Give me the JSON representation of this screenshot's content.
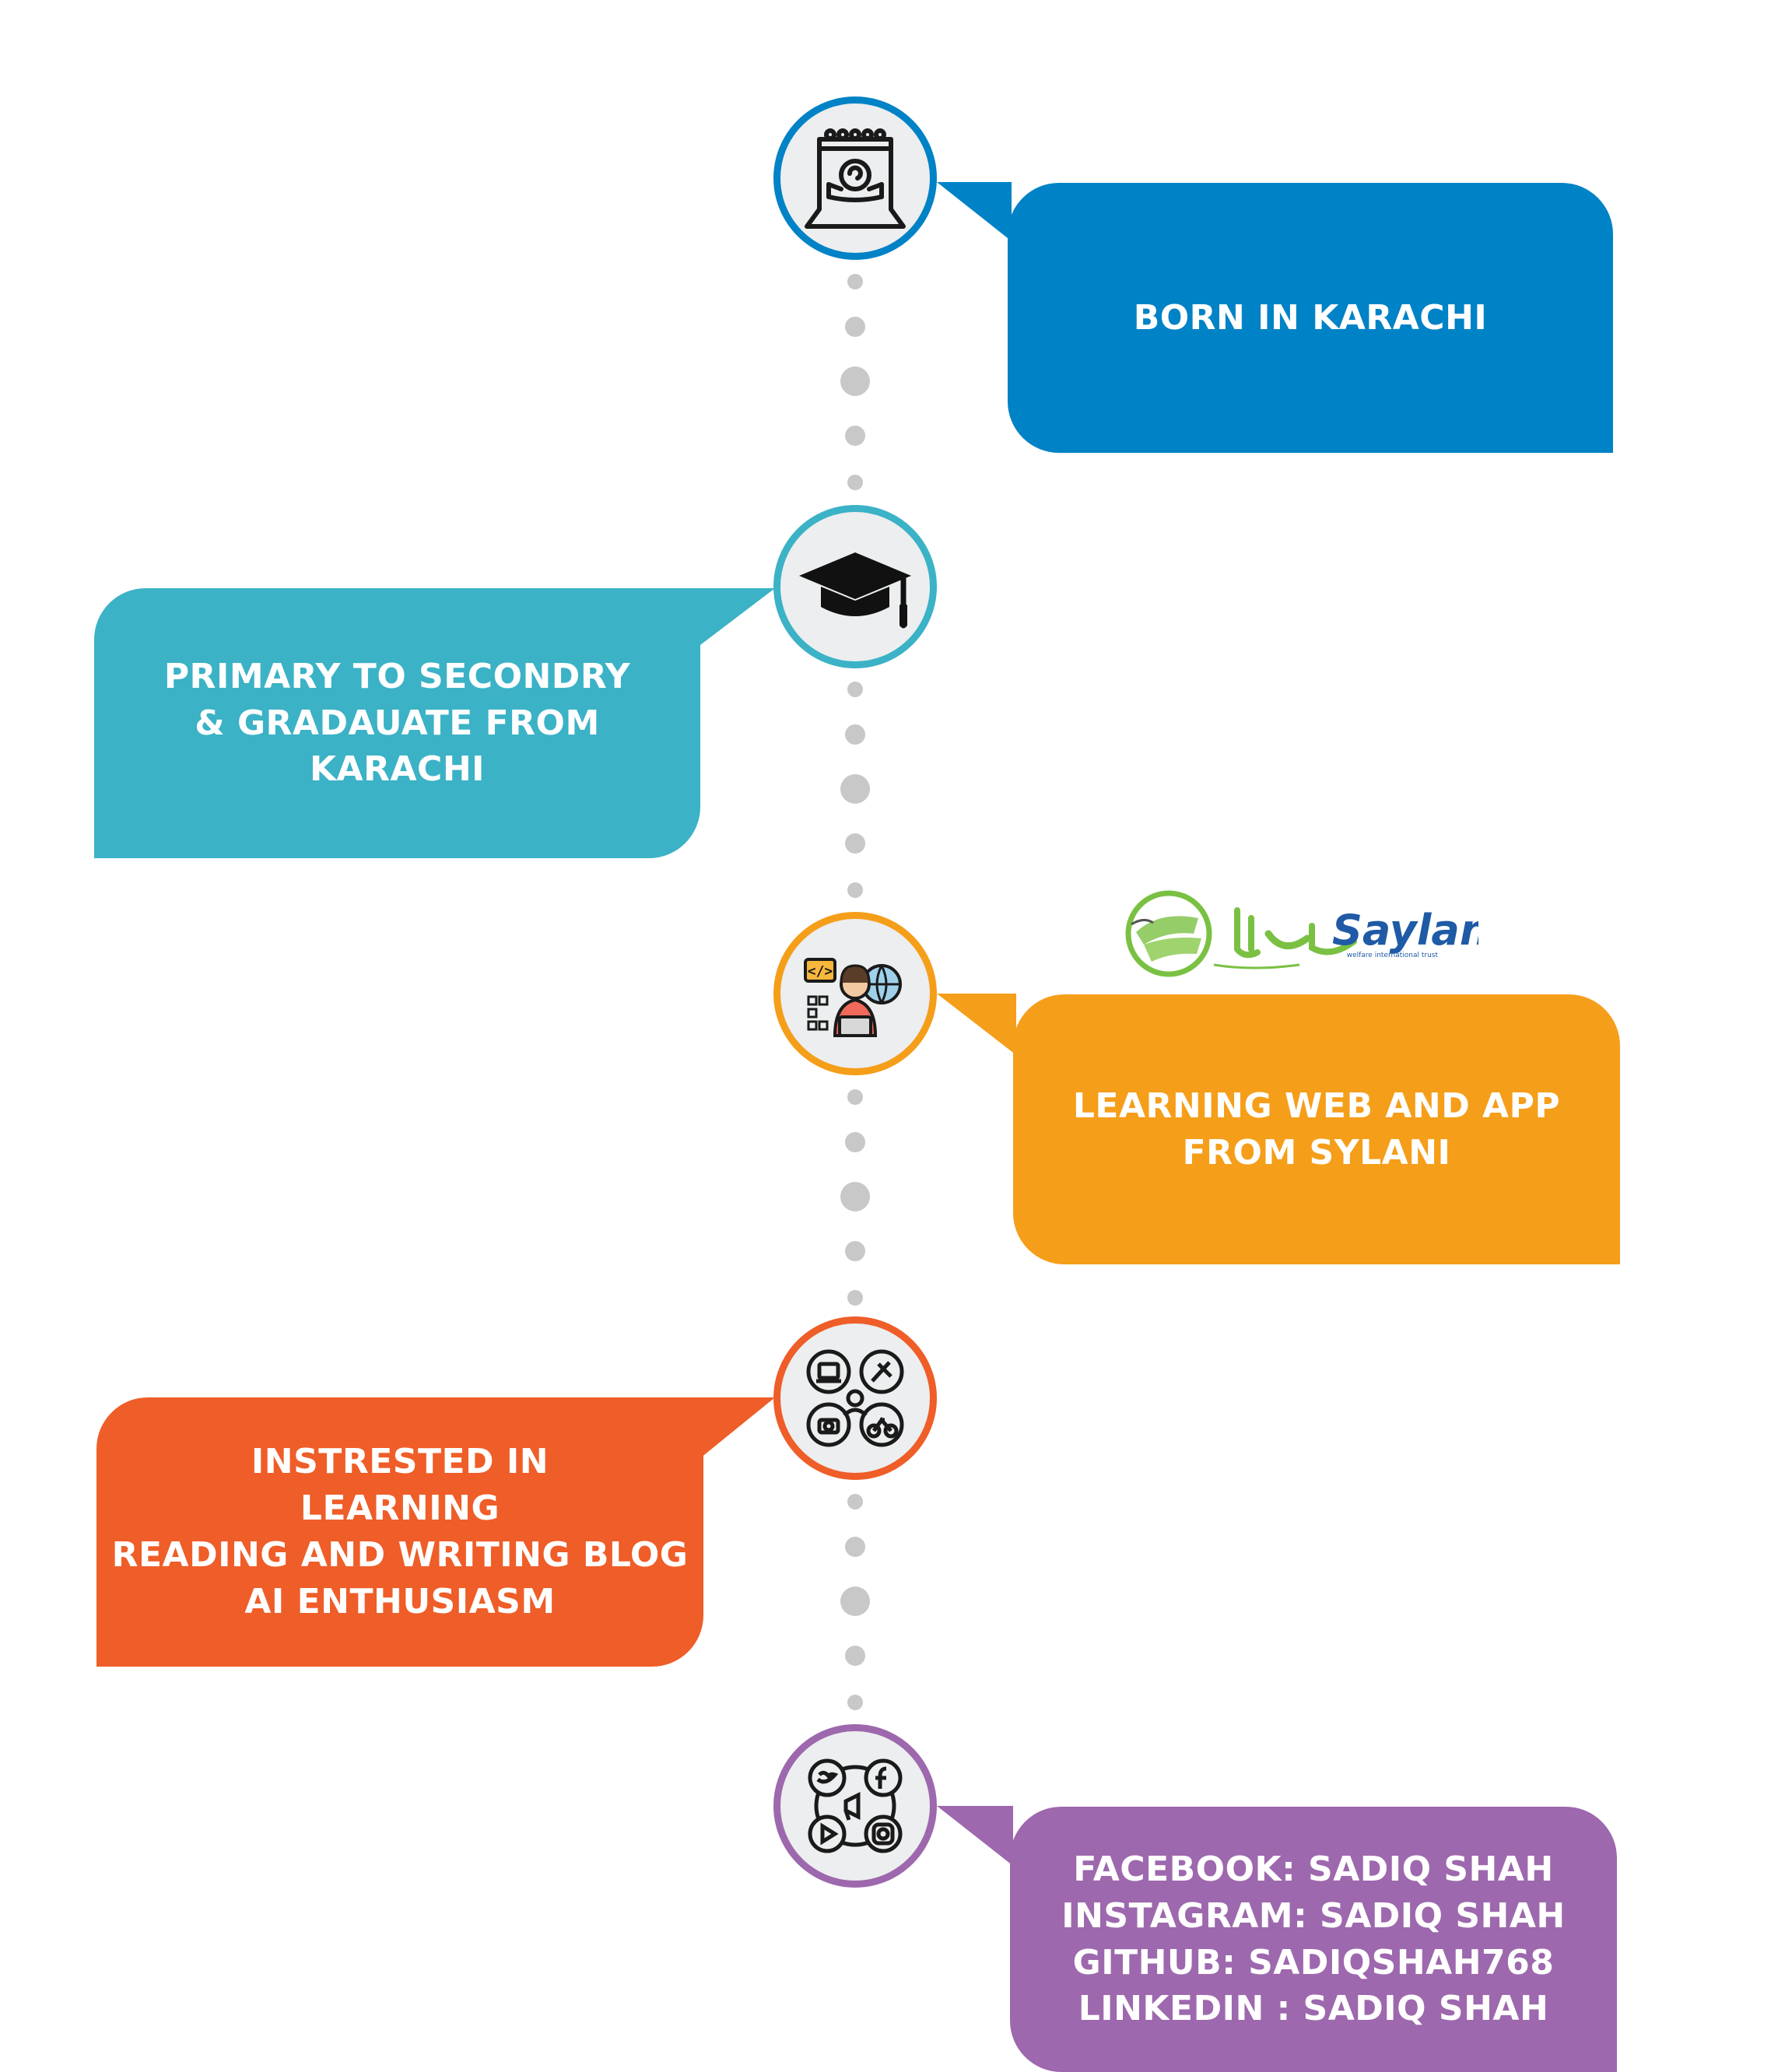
{
  "timeline": [
    {
      "id": "born",
      "icon": "baby-calendar-icon",
      "color": "#0082c6",
      "lines": [
        "BORN IN KARACHI"
      ]
    },
    {
      "id": "education",
      "icon": "graduation-cap-icon",
      "color": "#3bb2c6",
      "lines": [
        "PRIMARY TO SECONDRY",
        "& GRADAUATE FROM",
        "KARACHI"
      ]
    },
    {
      "id": "learning",
      "icon": "developer-globe-icon",
      "color": "#f59e1a",
      "lines": [
        "LEARNING WEB AND APP",
        "FROM SYLANI"
      ]
    },
    {
      "id": "interests",
      "icon": "hobbies-icon",
      "color": "#ef5d28",
      "lines": [
        "INSTRESTED IN",
        "LEARNING",
        "READING AND WRITING BLOG",
        "AI ENTHUSIASM"
      ]
    },
    {
      "id": "social",
      "icon": "social-media-icon",
      "color": "#9d68ad",
      "lines": [
        "FACEBOOK:  SADIQ SHAH",
        "INSTAGRAM: SADIQ SHAH",
        "GITHUB:  SADIQSHAH768",
        "LINKEDIN : SADIQ SHAH"
      ]
    }
  ],
  "logo": {
    "name": "Saylani",
    "urdu": "سیلانی",
    "tagline": "welfare international trust"
  },
  "colors": {
    "connector_dot": "#c8c8c8",
    "node_fill": "#eceeef",
    "logo_green": "#7ac143",
    "logo_blue": "#1f5aa6"
  }
}
